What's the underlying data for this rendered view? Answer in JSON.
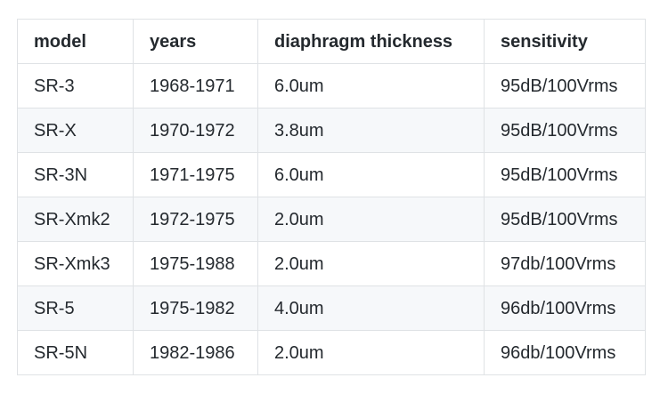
{
  "table": {
    "headers": [
      "model",
      "years",
      "diaphragm thickness",
      "sensitivity"
    ],
    "rows": [
      [
        "SR-3",
        "1968-1971",
        "6.0um",
        "95dB/100Vrms"
      ],
      [
        "SR-X",
        "1970-1972",
        "3.8um",
        "95dB/100Vrms"
      ],
      [
        "SR-3N",
        "1971-1975",
        "6.0um",
        "95dB/100Vrms"
      ],
      [
        "SR-Xmk2",
        "1972-1975",
        "2.0um",
        "95dB/100Vrms"
      ],
      [
        "SR-Xmk3",
        "1975-1988",
        "2.0um",
        "97db/100Vrms"
      ],
      [
        "SR-5",
        "1975-1982",
        "4.0um",
        "96db/100Vrms"
      ],
      [
        "SR-5N",
        "1982-1986",
        "2.0um",
        "96db/100Vrms"
      ]
    ]
  }
}
